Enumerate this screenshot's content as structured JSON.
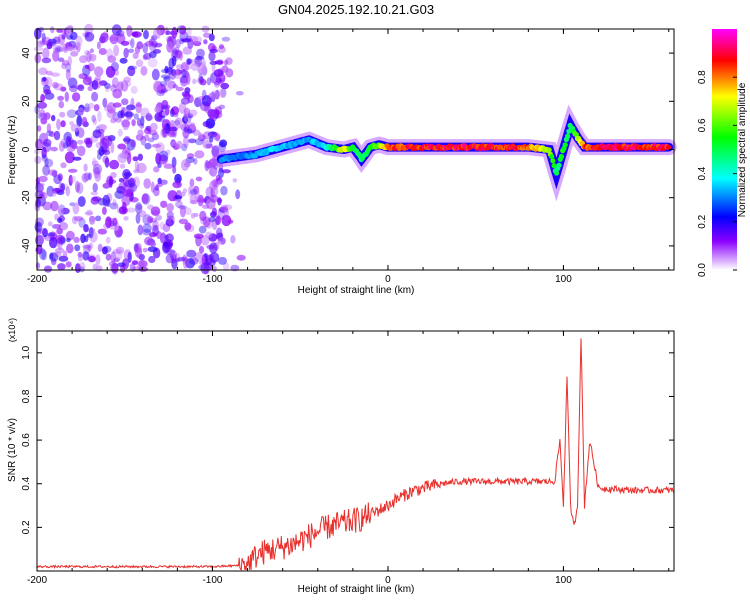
{
  "title": "GN04.2025.192.10.21.G03",
  "chart_data": [
    {
      "type": "heatmap",
      "title": "GN04.2025.192.10.21.G03",
      "xlabel": "Height of straight line (km)",
      "ylabel": "Frequency (Hz)",
      "xlim": [
        -200,
        163
      ],
      "ylim": [
        -50,
        50
      ],
      "xticks": [
        -200,
        -100,
        0,
        100
      ],
      "yticks": [
        -40,
        -20,
        0,
        20,
        40
      ],
      "colorbar": {
        "label": "Normalized spectral amplitude",
        "range": [
          0,
          1
        ],
        "ticks": [
          0.0,
          0.2,
          0.4,
          0.6,
          0.8
        ],
        "colormap": [
          "#ffffff",
          "#8b00ff",
          "#0000ff",
          "#00ffff",
          "#00ff00",
          "#ffff00",
          "#ff0000",
          "#ff00ff"
        ]
      },
      "ridge": {
        "x": [
          -95,
          -85,
          -75,
          -65,
          -55,
          -45,
          -35,
          -25,
          -20,
          -15,
          -10,
          -5,
          0,
          20,
          40,
          60,
          80,
          92,
          96,
          100,
          104,
          108,
          112,
          120,
          140,
          160
        ],
        "y": [
          -4,
          -3,
          -2,
          0,
          2,
          4,
          1,
          0,
          1,
          -4,
          1,
          2,
          1,
          1,
          1,
          1,
          1,
          0,
          -10,
          0,
          10,
          5,
          1,
          1,
          1,
          1
        ],
        "amplitude": [
          0.35,
          0.3,
          0.35,
          0.4,
          0.35,
          0.35,
          0.4,
          0.8,
          0.6,
          0.5,
          0.6,
          0.7,
          0.9,
          0.95,
          0.95,
          0.95,
          0.9,
          0.7,
          0.5,
          0.6,
          0.5,
          0.7,
          0.9,
          0.95,
          0.95,
          0.95
        ]
      },
      "noise_region": {
        "x": [
          -200,
          -92
        ],
        "ylim": [
          -50,
          50
        ],
        "amplitude_range": [
          0.05,
          0.2
        ]
      }
    },
    {
      "type": "line",
      "xlabel": "Height of straight line (km)",
      "ylabel": "SNR (10 * v/v)",
      "multiplier": "(x10⁴)",
      "xlim": [
        -200,
        163
      ],
      "ylim": [
        0,
        1.1
      ],
      "xticks": [
        -200,
        -100,
        0,
        100
      ],
      "yticks": [
        0.2,
        0.4,
        0.6,
        0.8,
        1.0
      ],
      "color": "#e8302d",
      "series": [
        {
          "x": [
            -200,
            -150,
            -100,
            -85,
            -80,
            -75,
            -70,
            -65,
            -60,
            -55,
            -50,
            -45,
            -40,
            -35,
            -30,
            -25,
            -20,
            -15,
            -10,
            -5,
            0,
            5,
            10,
            15,
            20,
            25,
            30,
            40,
            60,
            80,
            95,
            98,
            100,
            102,
            104,
            106,
            108,
            110,
            112,
            115,
            120,
            140,
            163
          ],
          "y": [
            0.02,
            0.02,
            0.02,
            0.025,
            0.03,
            0.07,
            0.09,
            0.1,
            0.11,
            0.12,
            0.14,
            0.16,
            0.18,
            0.2,
            0.21,
            0.22,
            0.23,
            0.24,
            0.26,
            0.28,
            0.3,
            0.33,
            0.35,
            0.37,
            0.38,
            0.39,
            0.4,
            0.41,
            0.41,
            0.41,
            0.41,
            0.6,
            0.3,
            0.9,
            0.3,
            0.2,
            0.3,
            1.08,
            0.3,
            0.6,
            0.38,
            0.37,
            0.37
          ]
        }
      ],
      "noise_amplitude": [
        {
          "x": [
            -200,
            -85
          ],
          "amp": 0.005
        },
        {
          "x": [
            -85,
            -10
          ],
          "amp": 0.06
        },
        {
          "x": [
            -10,
            30
          ],
          "amp": 0.03
        },
        {
          "x": [
            30,
            163
          ],
          "amp": 0.015
        }
      ]
    }
  ]
}
